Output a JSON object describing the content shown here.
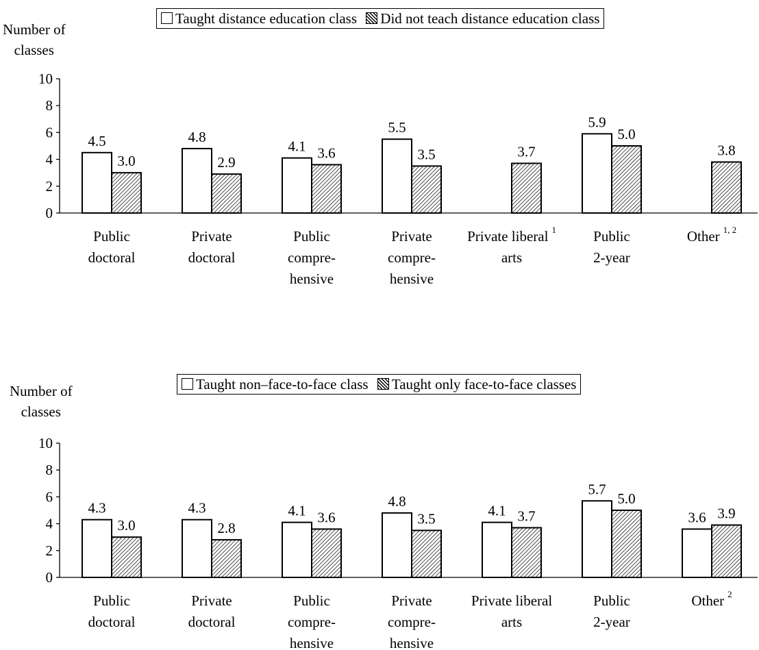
{
  "chart_data": [
    {
      "type": "bar",
      "ylabel": [
        "Number of",
        "classes"
      ],
      "ylim": [
        0,
        10
      ],
      "yticks": [
        "0",
        "2",
        "4",
        "6",
        "8",
        "10"
      ],
      "legend_position": "top-center",
      "categories": [
        {
          "lines": [
            "Public",
            "doctoral"
          ]
        },
        {
          "lines": [
            "Private",
            "doctoral"
          ]
        },
        {
          "lines": [
            "Public",
            "compre-",
            "hensive"
          ]
        },
        {
          "lines": [
            "Private",
            "compre-",
            "hensive"
          ]
        },
        {
          "lines": [
            "Private liberal",
            "arts"
          ],
          "sup": "1"
        },
        {
          "lines": [
            "Public",
            "2-year"
          ]
        },
        {
          "lines": [
            "Other"
          ],
          "sup": "1, 2"
        }
      ],
      "series": [
        {
          "name": "Taught distance education class",
          "pattern": "open",
          "values": [
            4.5,
            4.8,
            4.1,
            5.5,
            null,
            5.9,
            null
          ],
          "labels": [
            "4.5",
            "4.8",
            "4.1",
            "5.5",
            "",
            "5.9",
            ""
          ]
        },
        {
          "name": "Did not teach distance education class",
          "pattern": "hatched",
          "values": [
            3.0,
            2.9,
            3.6,
            3.5,
            3.7,
            5.0,
            3.8
          ],
          "labels": [
            "3.0",
            "2.9",
            "3.6",
            "3.5",
            "3.7",
            "5.0",
            "3.8"
          ]
        }
      ]
    },
    {
      "type": "bar",
      "ylabel": [
        "Number of",
        "classes"
      ],
      "ylim": [
        0,
        10
      ],
      "yticks": [
        "0",
        "2",
        "4",
        "6",
        "8",
        "10"
      ],
      "legend_position": "top-center",
      "categories": [
        {
          "lines": [
            "Public",
            "doctoral"
          ]
        },
        {
          "lines": [
            "Private",
            "doctoral"
          ]
        },
        {
          "lines": [
            "Public",
            "compre-",
            "hensive"
          ]
        },
        {
          "lines": [
            "Private",
            "compre-",
            "hensive"
          ]
        },
        {
          "lines": [
            "Private liberal",
            "arts"
          ]
        },
        {
          "lines": [
            "Public",
            "2-year"
          ]
        },
        {
          "lines": [
            "Other"
          ],
          "sup": "2"
        }
      ],
      "series": [
        {
          "name": "Taught non–face-to-face class",
          "pattern": "open",
          "values": [
            4.3,
            4.3,
            4.1,
            4.8,
            4.1,
            5.7,
            3.6
          ],
          "labels": [
            "4.3",
            "4.3",
            "4.1",
            "4.8",
            "4.1",
            "5.7",
            "3.6"
          ]
        },
        {
          "name": "Taught only face-to-face classes",
          "pattern": "hatched",
          "values": [
            3.0,
            2.8,
            3.6,
            3.5,
            3.7,
            5.0,
            3.9
          ],
          "labels": [
            "3.0",
            "2.8",
            "3.6",
            "3.5",
            "3.7",
            "5.0",
            "3.9"
          ]
        }
      ]
    }
  ]
}
